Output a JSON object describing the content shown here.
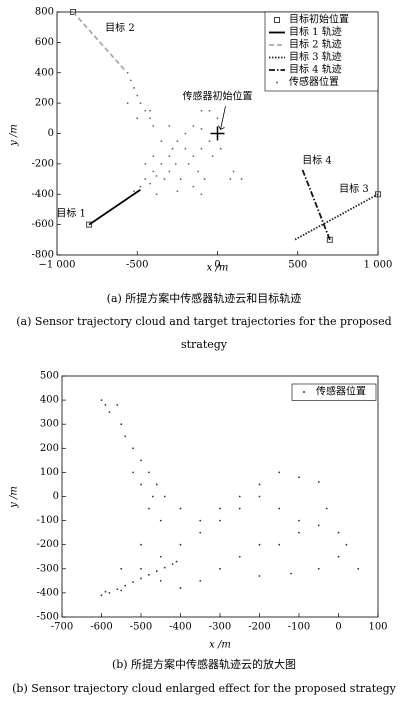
{
  "chart_data": [
    {
      "type": "scatter",
      "xlabel": "x /m",
      "ylabel": "y /m",
      "xlim": [
        -1000,
        1000
      ],
      "xticks": [
        {
          "value": -1000,
          "label": "−1 000"
        },
        -500,
        0,
        500,
        {
          "value": 1000,
          "label": "1 000"
        }
      ],
      "ylim": [
        -800,
        800
      ],
      "yticks": [
        -800,
        -600,
        -400,
        -200,
        0,
        200,
        400,
        600,
        800
      ],
      "legend": "upper right",
      "annotations": [
        "目标 1",
        "目标 2",
        "目标 3",
        "目标 4",
        "传感器初始位置"
      ],
      "series": [
        {
          "name": "目标初始位置",
          "color": "#444444",
          "style": "square",
          "x": [
            -900,
            -800,
            1000,
            700
          ],
          "values": [
            800,
            -600,
            -400,
            -700
          ]
        },
        {
          "name": "目标 1 轨迹",
          "color": "#000000",
          "style": "solid",
          "x": [
            -800,
            -480
          ],
          "values": [
            -600,
            -370
          ]
        },
        {
          "name": "目标 2 轨迹",
          "color": "#aaaaaa",
          "style": "dashed",
          "x": [
            -900,
            -580
          ],
          "values": [
            800,
            420
          ]
        },
        {
          "name": "目标 3 轨迹",
          "color": "#222222",
          "style": "dotted",
          "x": [
            1000,
            480
          ],
          "values": [
            -400,
            -700
          ]
        },
        {
          "name": "目标 4 轨迹",
          "color": "#111111",
          "style": "dashdot",
          "x": [
            700,
            530
          ],
          "values": [
            -700,
            -240
          ]
        },
        {
          "name": "传感器位置",
          "color": "#666666",
          "style": "points",
          "x": [
            -520,
            -480,
            -450,
            -420,
            -400,
            -380,
            -350,
            -330,
            -300,
            -300,
            -280,
            -260,
            -250,
            -230,
            -200,
            -200,
            -180,
            -150,
            -150,
            -120,
            -100,
            -100,
            -80,
            -50,
            -30,
            0,
            20,
            -400,
            -450,
            -350,
            -300,
            -420,
            -380,
            -250,
            -150,
            -100,
            100,
            150,
            80,
            -560,
            -540,
            -520,
            -500,
            -480,
            -450,
            -420,
            -400,
            -560,
            -500,
            -50,
            0,
            -100
          ],
          "values": [
            -380,
            -350,
            -300,
            -330,
            -250,
            -280,
            -200,
            -300,
            -150,
            -250,
            -100,
            -200,
            -50,
            -300,
            -100,
            0,
            -200,
            50,
            -150,
            -250,
            30,
            -100,
            -300,
            -50,
            -150,
            -20,
            -100,
            -150,
            -200,
            -50,
            50,
            150,
            -400,
            -380,
            -350,
            -400,
            -250,
            -300,
            -300,
            400,
            350,
            300,
            250,
            200,
            150,
            100,
            50,
            200,
            100,
            150,
            100,
            150
          ]
        }
      ]
    },
    {
      "type": "scatter",
      "xlabel": "x /m",
      "ylabel": "y /m",
      "xlim": [
        -700,
        100
      ],
      "xticks": [
        -700,
        -600,
        -500,
        -400,
        -300,
        -200,
        -100,
        0,
        100
      ],
      "ylim": [
        -500,
        500
      ],
      "yticks": [
        -500,
        -400,
        -300,
        -200,
        -100,
        0,
        100,
        200,
        300,
        400,
        500
      ],
      "legend": "upper right",
      "series": [
        {
          "name": "传感器位置",
          "color": "#333333",
          "style": "points",
          "x": [
            -600,
            -580,
            -560,
            -540,
            -520,
            -500,
            -480,
            -460,
            -440,
            -420,
            -410,
            -590,
            -550,
            -500,
            -450,
            -400,
            -350,
            -300,
            -250,
            -200,
            -150,
            -100,
            -50,
            0,
            -300,
            -250,
            -200,
            -150,
            -100,
            -350,
            -400,
            -450,
            -200,
            -150,
            -100,
            -50,
            -250,
            -300,
            -350,
            -400,
            -450,
            -500,
            -550,
            -50,
            0,
            20,
            50,
            -120,
            -200,
            -30,
            -600,
            -590,
            -580,
            -560,
            -550,
            -540,
            -520,
            -500,
            -480,
            -460,
            -440,
            -520,
            -500,
            -480,
            -470
          ],
          "values": [
            -410,
            -400,
            -385,
            -370,
            -355,
            -340,
            -325,
            -310,
            -295,
            -280,
            -270,
            -395,
            -390,
            -300,
            -250,
            -200,
            -150,
            -100,
            -50,
            0,
            -50,
            -100,
            -120,
            -150,
            -300,
            -250,
            -200,
            -200,
            -150,
            -350,
            -380,
            -350,
            50,
            100,
            80,
            60,
            0,
            -50,
            -100,
            -50,
            -100,
            -200,
            -300,
            -300,
            -250,
            -200,
            -300,
            -320,
            -330,
            -50,
            400,
            380,
            350,
            380,
            300,
            250,
            200,
            150,
            100,
            50,
            0,
            100,
            50,
            -50,
            0
          ]
        }
      ]
    }
  ],
  "captions": [
    {
      "zh": "(a) 所提方案中传感器轨迹云和目标轨迹",
      "en": "(a) Sensor trajectory cloud and target trajectories for the proposed strategy"
    },
    {
      "zh": "(b) 所提方案中传感器轨迹云的放大图",
      "en": "(b) Sensor trajectory cloud enlarged effect for the proposed strategy"
    }
  ]
}
